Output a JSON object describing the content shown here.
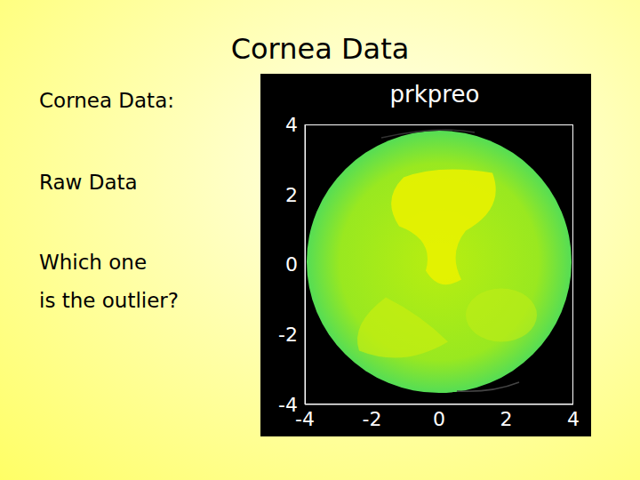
{
  "slide": {
    "title": "Cornea Data",
    "bullets": [
      "Cornea Data:",
      "Raw Data",
      "Which one",
      "is the outlier?"
    ]
  },
  "chart_data": {
    "type": "image",
    "title": "prkpreo",
    "xlim": [
      -4,
      4
    ],
    "xticks": [
      -4,
      -2,
      0,
      2,
      4
    ],
    "ylim": [
      -4,
      4
    ],
    "yticks": [
      -4,
      -2,
      0,
      2,
      4
    ]
  }
}
